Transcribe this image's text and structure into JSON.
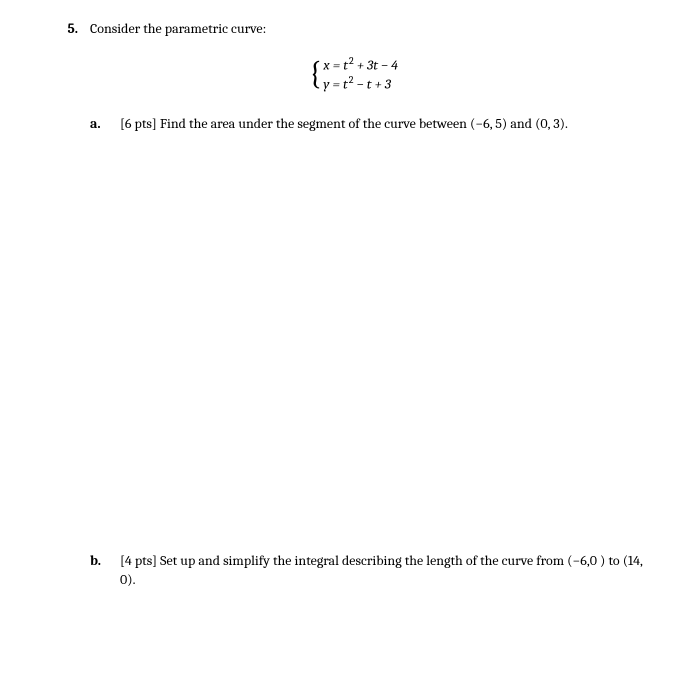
{
  "question": {
    "number": "5.",
    "prompt": "Consider the parametric curve:"
  },
  "equations": {
    "line1_html": "<span class='var'>x</span> = <span class='var'>t</span><span class='sup'>2</span> + 3<span class='var'>t</span> − 4",
    "line2_html": "<span class='var'>y</span> = <span class='var'>t</span><span class='sup'>2</span> − <span class='var'>t</span> + 3"
  },
  "parts": {
    "a": {
      "label": "a.",
      "text_html": "[6 pts] Find the area under the segment of the curve between (−6, 5) and (0, 3)."
    },
    "b": {
      "label": "b.",
      "text_html": "[4 pts] Set up and simplify the integral describing the length of the curve from (−6,0 ) to (14, 0)."
    }
  },
  "style": {
    "background_color": "#ffffff",
    "text_color": "#000000",
    "body_fontsize": 14,
    "font_family": "Cambria, Georgia, Times New Roman, serif"
  }
}
